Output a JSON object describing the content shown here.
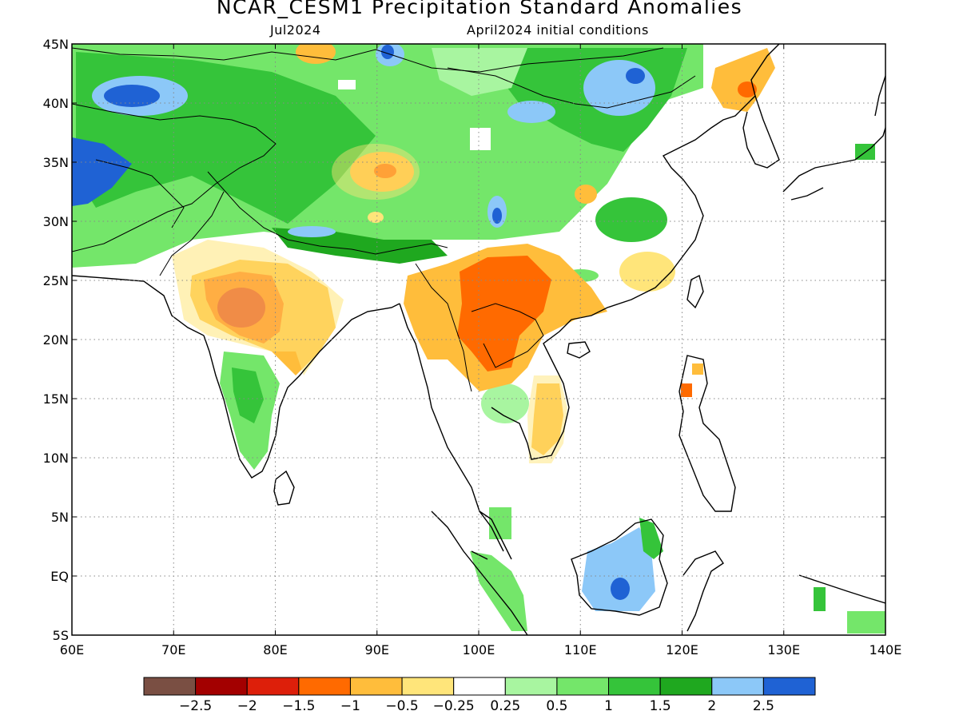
{
  "title": "NCAR_CESM1 Precipitation Standard Anomalies",
  "subtitle_left": "Jul2024",
  "subtitle_right": "April2024 initial conditions",
  "map": {
    "lon_range": [
      60,
      140
    ],
    "lat_range": [
      -5,
      45
    ],
    "lon_ticks": [
      {
        "value": 60,
        "label": "60E"
      },
      {
        "value": 70,
        "label": "70E"
      },
      {
        "value": 80,
        "label": "80E"
      },
      {
        "value": 90,
        "label": "90E"
      },
      {
        "value": 100,
        "label": "100E"
      },
      {
        "value": 110,
        "label": "110E"
      },
      {
        "value": 120,
        "label": "120E"
      },
      {
        "value": 130,
        "label": "130E"
      },
      {
        "value": 140,
        "label": "140E"
      }
    ],
    "lat_ticks": [
      {
        "value": 45,
        "label": "45N"
      },
      {
        "value": 40,
        "label": "40N"
      },
      {
        "value": 35,
        "label": "35N"
      },
      {
        "value": 30,
        "label": "30N"
      },
      {
        "value": 25,
        "label": "25N"
      },
      {
        "value": 20,
        "label": "20N"
      },
      {
        "value": 15,
        "label": "15N"
      },
      {
        "value": 10,
        "label": "10N"
      },
      {
        "value": 5,
        "label": "5N"
      },
      {
        "value": 0,
        "label": "EQ"
      },
      {
        "value": -5,
        "label": "5S"
      }
    ],
    "grid": "dotted"
  },
  "colorbar": {
    "colors": [
      "#7a4f43",
      "#a30000",
      "#dd1f0a",
      "#ff6a00",
      "#ffbd3b",
      "#ffe57a",
      "#ffffff",
      "#a8f5a0",
      "#74e66a",
      "#35c43a",
      "#1fa81f",
      "#8cc8f8",
      "#1f62d4"
    ],
    "labels": [
      "−2.5",
      "−2",
      "−1.5",
      "−1",
      "−0.5",
      "−0.25",
      "0.25",
      "0.5",
      "1",
      "1.5",
      "2",
      "2.5"
    ]
  },
  "chart_data": {
    "type": "heatmap",
    "title": "NCAR_CESM1 Precipitation Standard Anomalies",
    "subtitle": "Jul2024 — April2024 initial conditions",
    "xlabel": "",
    "ylabel": "",
    "xlim": [
      60,
      140
    ],
    "ylim": [
      -5,
      45
    ],
    "levels": [
      -2.5,
      -2,
      -1.5,
      -1,
      -0.5,
      -0.25,
      0.25,
      0.5,
      1,
      1.5,
      2,
      2.5
    ],
    "anomaly_regions": [
      {
        "region": "Central India (~75-80E, 20-25N)",
        "level": "-2 to -1.5"
      },
      {
        "region": "Myanmar/Laos/Yunnan (~97-105E, 18-26N)",
        "level": "-1.5 to -0.5"
      },
      {
        "region": "Tibetan Plateau (~91E, 34N)",
        "level": "-1 to -0.5"
      },
      {
        "region": "Korea/NE China (~127E, 38-43N)",
        "level": "-1 to -0.5"
      },
      {
        "region": "Southern Vietnam (~106E, 10-16N)",
        "level": "-0.5 to -0.25"
      },
      {
        "region": "Afghanistan/Pakistan/NW China (60-90E, 30-45N)",
        "level": "0.5 to 2.5"
      },
      {
        "region": "Iran/Afghanistan (~61E, 33-35N)",
        "level": "2.5"
      },
      {
        "region": "Kazakhstan (~65E, 41N)",
        "level": "2.5"
      },
      {
        "region": "Mongolia (~112-117E, 38-42N)",
        "level": "2 to 2.5"
      },
      {
        "region": "South India (~77-80E, 10-17N)",
        "level": "0.5 to 1.5"
      },
      {
        "region": "Borneo (~110-117E, -3 to 3N)",
        "level": "2 to 2.5"
      },
      {
        "region": "Sumatra (~100-105E, -3 to 3N)",
        "level": "0.5 to 1.5"
      }
    ]
  }
}
